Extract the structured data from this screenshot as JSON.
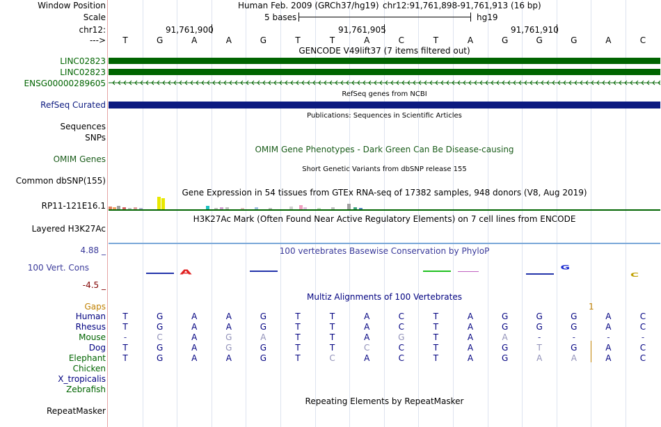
{
  "header": {
    "window_position_label": "Window Position",
    "scale_label": "Scale",
    "chrom_label": "chr12:",
    "arrow_label": "--->",
    "assembly": "Human Feb. 2009 (GRCh37/hg19)",
    "position": "chr12:91,761,898-91,761,913 (16 bp)",
    "scale_text": "5 bases",
    "scale_db": "hg19",
    "coords": [
      "91,761,900",
      "91,761,905",
      "91,761,910"
    ]
  },
  "bases": [
    "T",
    "G",
    "A",
    "A",
    "G",
    "T",
    "T",
    "A",
    "C",
    "T",
    "A",
    "G",
    "G",
    "G",
    "A",
    "C"
  ],
  "gencode": {
    "title": "GENCODE V49lift37 (7 items filtered out)",
    "items": [
      {
        "label": "LINC02823",
        "color": "#006400"
      },
      {
        "label": "LINC02823",
        "color": "#006400"
      },
      {
        "label": "ENSG00000289605",
        "color": "#006400"
      }
    ]
  },
  "refseq": {
    "title": "RefSeq genes from NCBI",
    "label": "RefSeq Curated",
    "color": "#0c1a80"
  },
  "publications": {
    "title": "Publications: Sequences in Scientific Articles",
    "label": "Sequences"
  },
  "snps_label": "SNPs",
  "omim": {
    "title": "OMIM Gene Phenotypes - Dark Green Can Be Disease-causing",
    "label": "OMIM Genes",
    "color": "#1a5c1a"
  },
  "dbsnp": {
    "title": "Short Genetic Variants from dbSNP release 155",
    "label": "Common dbSNP(155)"
  },
  "gtex": {
    "title": "Gene Expression in 54 tissues from GTEx RNA-seq of 17382 samples, 948 donors (V8, Aug 2019)",
    "label": "RP11-121E16.1"
  },
  "h3k27ac": {
    "title": "H3K27Ac Mark (Often Found Near Active Regulatory Elements) on 7 cell lines from ENCODE",
    "label": "Layered H3K27Ac"
  },
  "conservation": {
    "title": "100 vertebrates Basewise Conservation by PhyloP",
    "label": "100 Vert. Cons",
    "max": "4.88 _",
    "min": "-4.5 _",
    "color": "#3a3a9a"
  },
  "multiz": {
    "title": "Multiz Alignments of 100 Vertebrates",
    "gaps_label": "Gaps",
    "gaps_mark": "1",
    "species": [
      {
        "name": "Human",
        "seq": [
          "T",
          "G",
          "A",
          "A",
          "G",
          "T",
          "T",
          "A",
          "C",
          "T",
          "A",
          "G",
          "G",
          "G",
          "A",
          "C"
        ]
      },
      {
        "name": "Rhesus",
        "seq": [
          "T",
          "G",
          "A",
          "A",
          "G",
          "T",
          "T",
          "A",
          "C",
          "T",
          "A",
          "G",
          "G",
          "G",
          "A",
          "C"
        ]
      },
      {
        "name": "Mouse",
        "seq": [
          "-",
          "C",
          "A",
          "G",
          "A",
          "T",
          "T",
          "A",
          "G",
          "T",
          "A",
          "A",
          "-",
          "-",
          "-",
          "-"
        ]
      },
      {
        "name": "Dog",
        "seq": [
          "T",
          "G",
          "A",
          "G",
          "G",
          "T",
          "T",
          "C",
          "C",
          "T",
          "A",
          "G",
          "T",
          "G",
          "A",
          "C"
        ]
      },
      {
        "name": "Elephant",
        "seq": [
          "T",
          "G",
          "A",
          "A",
          "G",
          "T",
          "C",
          "A",
          "C",
          "T",
          "A",
          "G",
          "A",
          "A",
          "A",
          "C"
        ]
      },
      {
        "name": "Chicken",
        "seq": []
      },
      {
        "name": "X_tropicalis",
        "seq": []
      },
      {
        "name": "Zebrafish",
        "seq": []
      }
    ]
  },
  "repeatmasker": {
    "title": "Repeating Elements by RepeatMasker",
    "label": "RepeatMasker"
  },
  "colors": {
    "label_default": "#000000",
    "label_blue": "#0c1a80",
    "label_green": "#006400",
    "label_navy": "#000080",
    "label_gaps": "#c08000",
    "label_cons": "#3a3a9a",
    "label_min": "#800000"
  }
}
